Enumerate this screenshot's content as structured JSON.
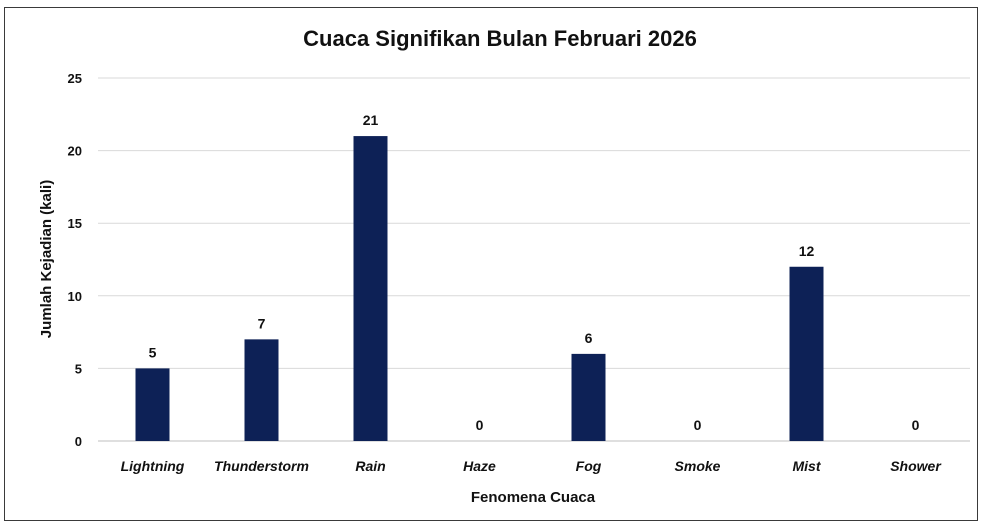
{
  "chart_data": {
    "type": "bar",
    "title": "Cuaca Signifikan Bulan Februari 2026",
    "xlabel": "Fenomena Cuaca",
    "ylabel": "Jumlah Kejadian (kali)",
    "categories": [
      "Lightning",
      "Thunderstorm",
      "Rain",
      "Haze",
      "Fog",
      "Smoke",
      "Mist",
      "Shower"
    ],
    "values": [
      5,
      7,
      21,
      0,
      6,
      0,
      12,
      0
    ],
    "ylim": [
      0,
      25
    ],
    "yticks": [
      0,
      5,
      10,
      15,
      20,
      25
    ],
    "grid": true,
    "legend": "none",
    "data_labels": true,
    "bar_color": "#0d2156"
  }
}
